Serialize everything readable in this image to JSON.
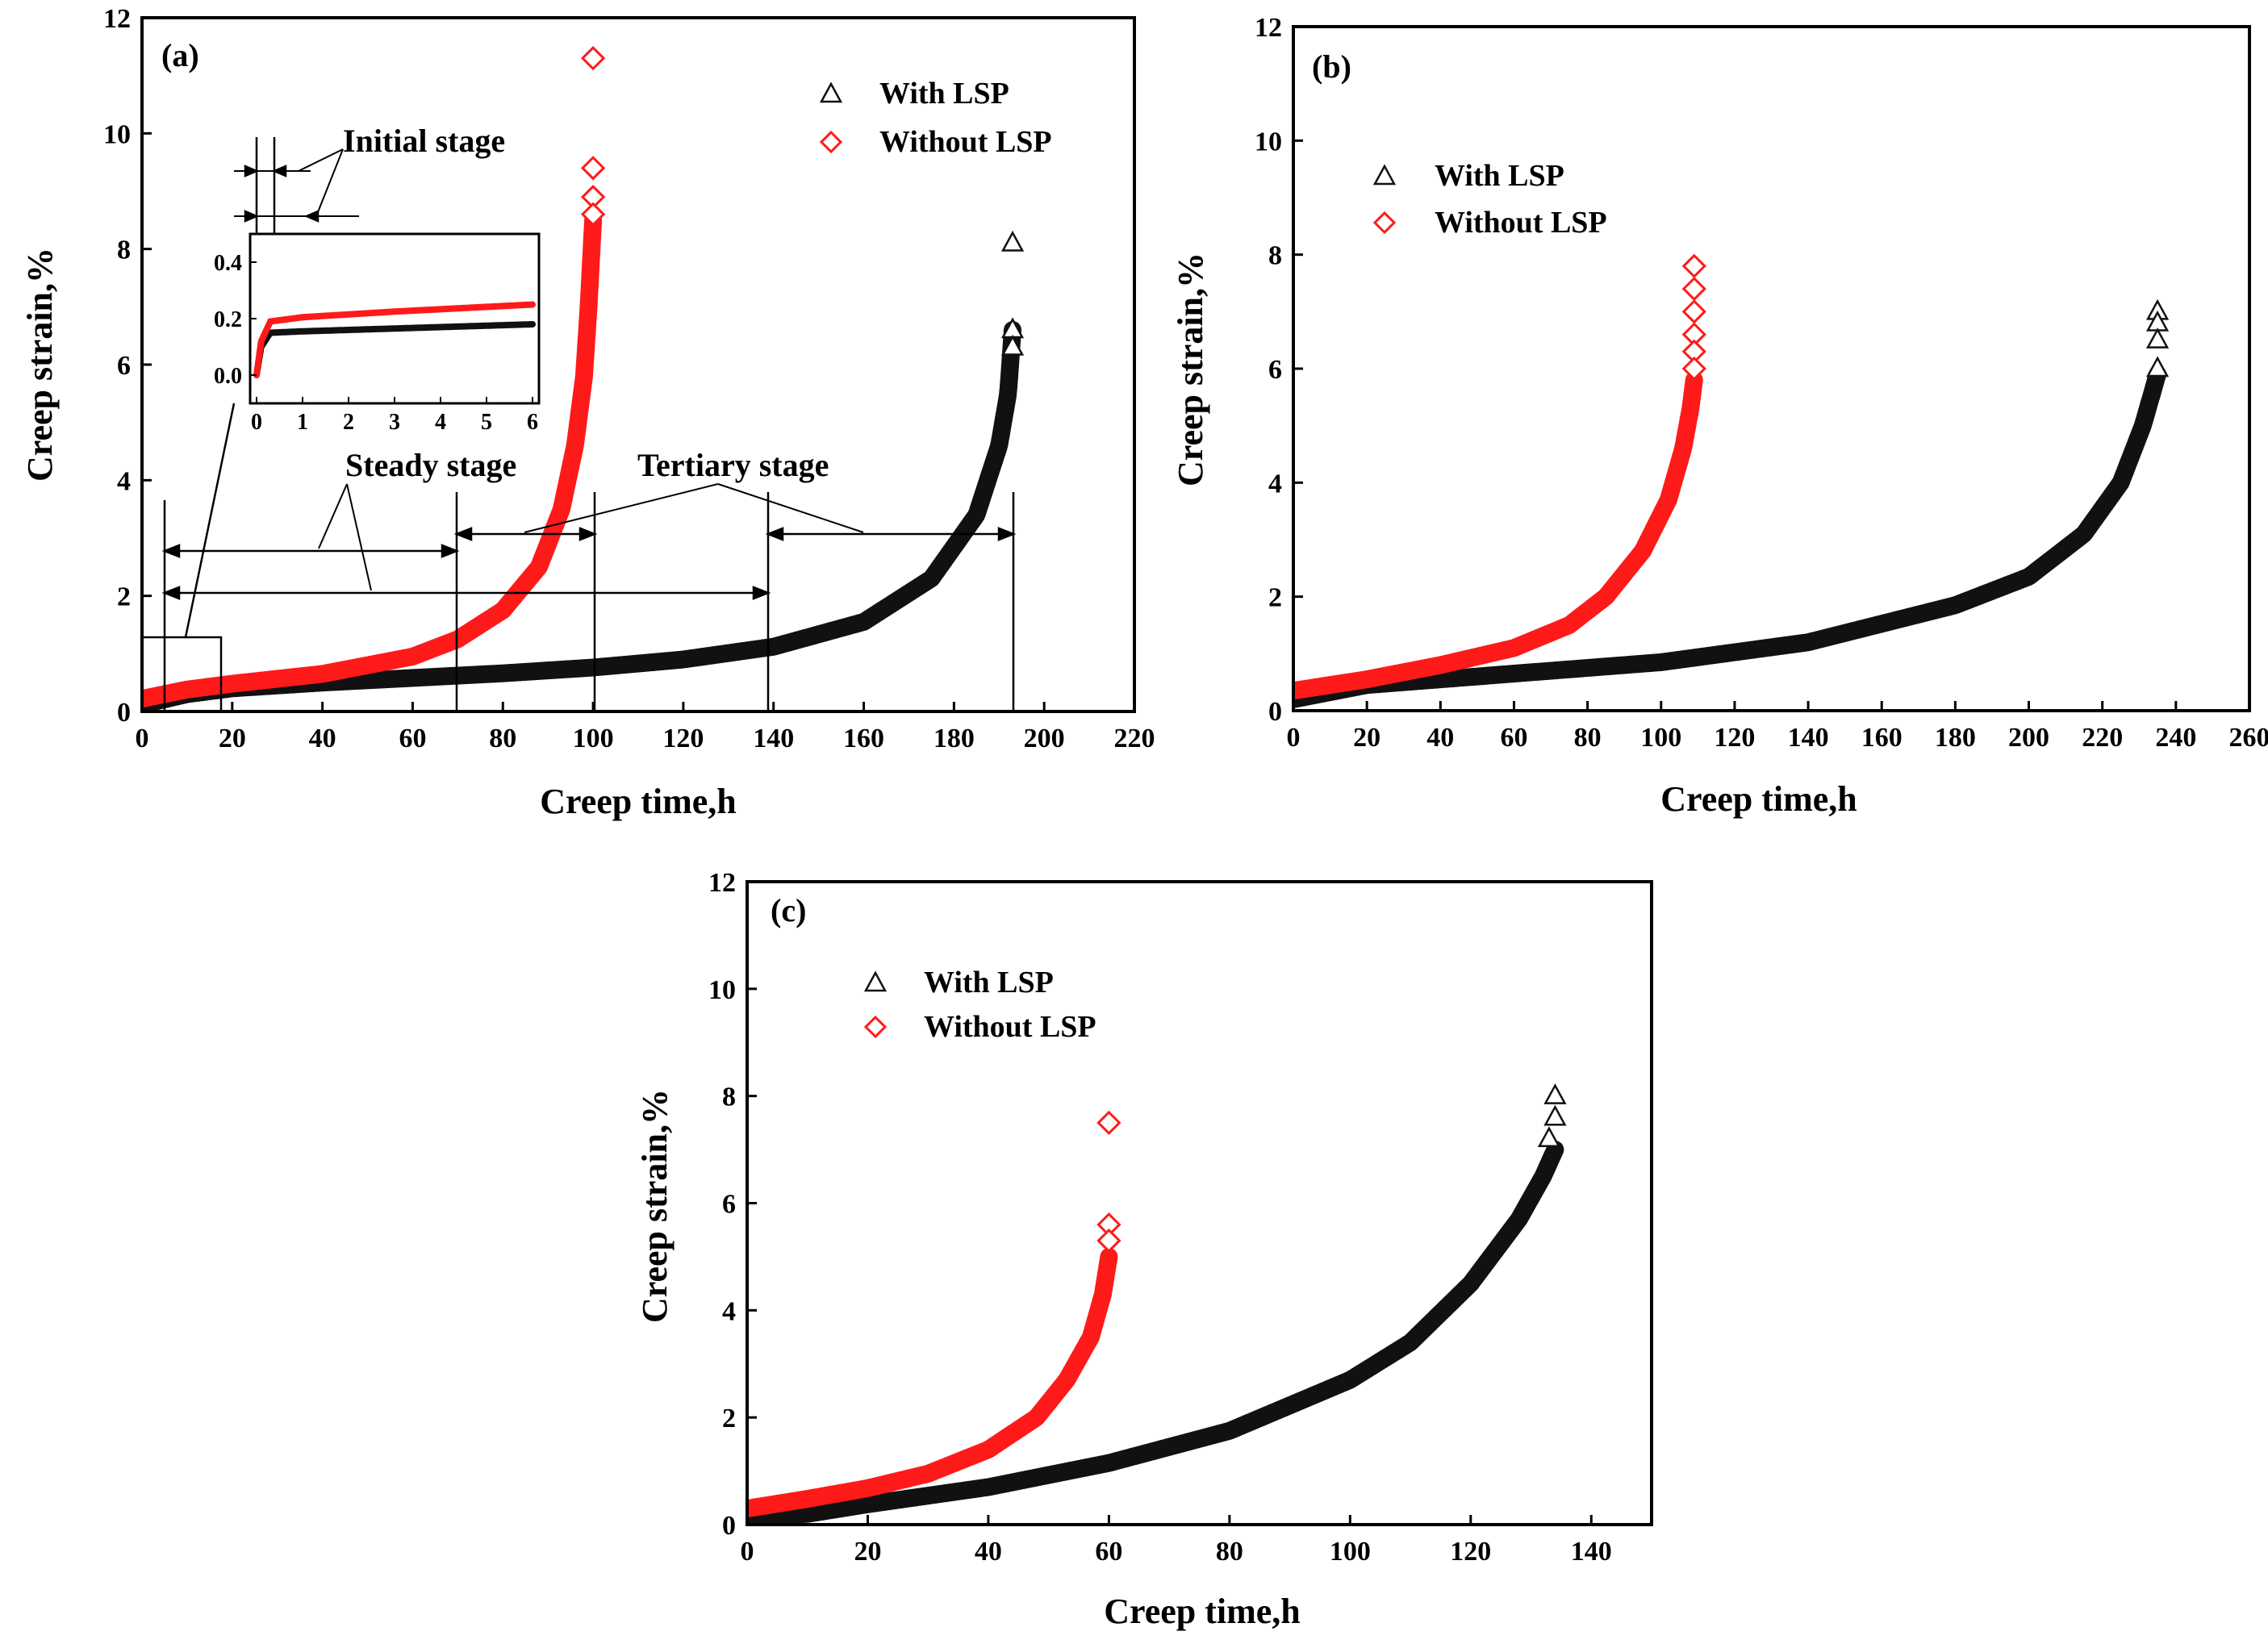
{
  "colors": {
    "with_lsp": "#111111",
    "without_lsp": "#ff1a1a"
  },
  "chart_data": [
    {
      "type": "scatter",
      "panel_label": "(a)",
      "xlabel": "Creep time,h",
      "ylabel": "Creep strain,%",
      "xlim": [
        0,
        220
      ],
      "ylim": [
        0,
        12
      ],
      "xticks": [
        0,
        20,
        40,
        60,
        80,
        100,
        120,
        140,
        160,
        180,
        200,
        220
      ],
      "yticks": [
        0,
        2,
        4,
        6,
        8,
        10,
        12
      ],
      "legend": [
        "With LSP",
        "Without LSP"
      ],
      "series": [
        {
          "name": "With LSP",
          "marker": "triangle",
          "t_end": 193,
          "points": [
            [
              0,
              0.12
            ],
            [
              10,
              0.3
            ],
            [
              20,
              0.4
            ],
            [
              40,
              0.5
            ],
            [
              60,
              0.58
            ],
            [
              80,
              0.66
            ],
            [
              100,
              0.76
            ],
            [
              120,
              0.9
            ],
            [
              140,
              1.12
            ],
            [
              160,
              1.55
            ],
            [
              175,
              2.3
            ],
            [
              185,
              3.4
            ],
            [
              190,
              4.6
            ],
            [
              192,
              5.5
            ],
            [
              193,
              6.6
            ]
          ],
          "fracture_points": [
            [
              193,
              8.1
            ],
            [
              193,
              6.6
            ],
            [
              193,
              6.3
            ]
          ]
        },
        {
          "name": "Without LSP",
          "marker": "diamond",
          "t_end": 100,
          "points": [
            [
              0,
              0.22
            ],
            [
              10,
              0.38
            ],
            [
              20,
              0.48
            ],
            [
              40,
              0.65
            ],
            [
              60,
              0.95
            ],
            [
              70,
              1.25
            ],
            [
              80,
              1.75
            ],
            [
              88,
              2.5
            ],
            [
              93,
              3.5
            ],
            [
              96,
              4.6
            ],
            [
              98,
              5.8
            ],
            [
              99,
              7.0
            ],
            [
              100,
              8.5
            ]
          ],
          "fracture_points": [
            [
              100,
              11.3
            ],
            [
              100,
              9.4
            ],
            [
              100,
              8.9
            ],
            [
              100,
              8.6
            ]
          ]
        }
      ],
      "annotations": [
        "Initial stage",
        "Steady stage",
        "Tertiary stage"
      ],
      "inset": {
        "xlim": [
          0,
          6
        ],
        "ylim": [
          -0.1,
          0.5
        ],
        "xticks": [
          0,
          1,
          2,
          3,
          4,
          5,
          6
        ],
        "yticks": [
          "0.0",
          "0.2",
          "0.4"
        ],
        "series": [
          {
            "name": "With LSP",
            "points": [
              [
                0,
                0.0
              ],
              [
                0.1,
                0.1
              ],
              [
                0.3,
                0.15
              ],
              [
                1,
                0.155
              ],
              [
                3,
                0.165
              ],
              [
                6,
                0.18
              ]
            ]
          },
          {
            "name": "Without LSP",
            "points": [
              [
                0,
                0.0
              ],
              [
                0.1,
                0.12
              ],
              [
                0.3,
                0.19
              ],
              [
                1,
                0.205
              ],
              [
                3,
                0.225
              ],
              [
                6,
                0.25
              ]
            ]
          }
        ]
      }
    },
    {
      "type": "scatter",
      "panel_label": "(b)",
      "xlabel": "Creep time,h",
      "ylabel": "Creep strain,%",
      "xlim": [
        0,
        260
      ],
      "ylim": [
        0,
        12
      ],
      "xticks": [
        0,
        20,
        40,
        60,
        80,
        100,
        120,
        140,
        160,
        180,
        200,
        220,
        240,
        260
      ],
      "yticks": [
        0,
        2,
        4,
        6,
        8,
        10,
        12
      ],
      "legend": [
        "With LSP",
        "Without LSP"
      ],
      "series": [
        {
          "name": "With LSP",
          "marker": "triangle",
          "t_end": 235,
          "points": [
            [
              0,
              0.2
            ],
            [
              20,
              0.45
            ],
            [
              50,
              0.6
            ],
            [
              100,
              0.85
            ],
            [
              140,
              1.2
            ],
            [
              180,
              1.85
            ],
            [
              200,
              2.35
            ],
            [
              215,
              3.1
            ],
            [
              225,
              4.0
            ],
            [
              231,
              5.0
            ],
            [
              235,
              5.9
            ]
          ],
          "fracture_points": [
            [
              235,
              7.0
            ],
            [
              235,
              6.8
            ],
            [
              235,
              6.5
            ],
            [
              235,
              6.0
            ]
          ]
        },
        {
          "name": "Without LSP",
          "marker": "diamond",
          "t_end": 109,
          "points": [
            [
              0,
              0.35
            ],
            [
              20,
              0.55
            ],
            [
              40,
              0.8
            ],
            [
              60,
              1.1
            ],
            [
              75,
              1.5
            ],
            [
              85,
              2.0
            ],
            [
              95,
              2.8
            ],
            [
              102,
              3.7
            ],
            [
              106,
              4.6
            ],
            [
              108,
              5.3
            ],
            [
              109,
              5.8
            ]
          ],
          "fracture_points": [
            [
              109,
              7.8
            ],
            [
              109,
              7.4
            ],
            [
              109,
              7.0
            ],
            [
              109,
              6.6
            ],
            [
              109,
              6.3
            ],
            [
              109,
              6.0
            ]
          ]
        }
      ]
    },
    {
      "type": "scatter",
      "panel_label": "(c)",
      "xlabel": "Creep time,h",
      "ylabel": "Creep strain,%",
      "xlim": [
        0,
        150
      ],
      "ylim": [
        0,
        12
      ],
      "xticks": [
        0,
        20,
        40,
        60,
        80,
        100,
        120,
        140
      ],
      "yticks": [
        0,
        2,
        4,
        6,
        8,
        10,
        12
      ],
      "legend": [
        "With LSP",
        "Without LSP"
      ],
      "series": [
        {
          "name": "With LSP",
          "marker": "triangle",
          "t_end": 134,
          "points": [
            [
              0,
              0.15
            ],
            [
              10,
              0.2
            ],
            [
              20,
              0.38
            ],
            [
              40,
              0.7
            ],
            [
              60,
              1.15
            ],
            [
              80,
              1.75
            ],
            [
              100,
              2.7
            ],
            [
              110,
              3.4
            ],
            [
              120,
              4.5
            ],
            [
              128,
              5.7
            ],
            [
              132,
              6.5
            ],
            [
              134,
              7.0
            ]
          ],
          "fracture_points": [
            [
              134,
              8.0
            ],
            [
              134,
              7.6
            ],
            [
              133,
              7.2
            ]
          ]
        },
        {
          "name": "Without LSP",
          "marker": "diamond",
          "t_end": 60,
          "points": [
            [
              0,
              0.3
            ],
            [
              10,
              0.48
            ],
            [
              20,
              0.68
            ],
            [
              30,
              0.95
            ],
            [
              40,
              1.4
            ],
            [
              48,
              2.0
            ],
            [
              53,
              2.7
            ],
            [
              57,
              3.5
            ],
            [
              59,
              4.3
            ],
            [
              60,
              5.0
            ]
          ],
          "fracture_points": [
            [
              60,
              7.5
            ],
            [
              60,
              5.6
            ],
            [
              60,
              5.3
            ]
          ]
        }
      ]
    }
  ]
}
